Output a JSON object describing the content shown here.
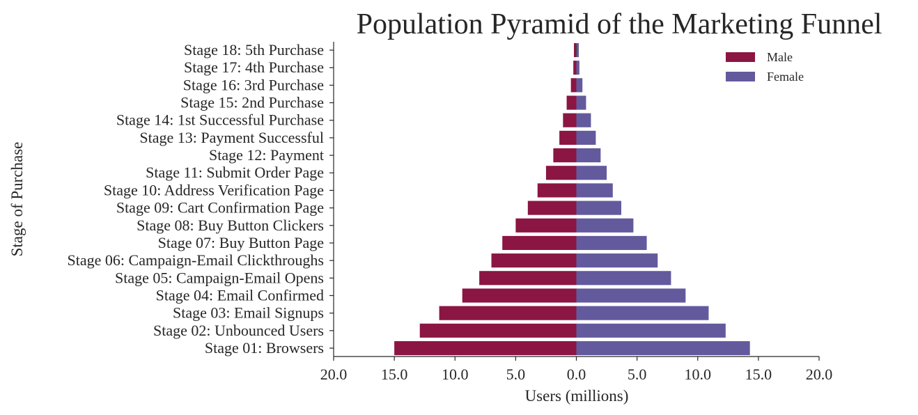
{
  "chart_data": {
    "type": "bar",
    "orientation": "horizontal",
    "title": "Population Pyramid of the Marketing Funnel",
    "xlabel": "Users (millions)",
    "ylabel": "Stage of Purchase",
    "xlim": [
      -20,
      20
    ],
    "xticks": [
      -20,
      -15,
      -10,
      -5,
      0,
      5,
      10,
      15,
      20
    ],
    "xtick_labels": [
      "20.0",
      "15.0",
      "10.0",
      "5.0",
      "0.0",
      "5.0",
      "10.0",
      "15.0",
      "20.0"
    ],
    "categories": [
      "Stage 01: Browsers",
      "Stage 02: Unbounced Users",
      "Stage 03: Email Signups",
      "Stage 04: Email Confirmed",
      "Stage 05: Campaign-Email Opens",
      "Stage 06: Campaign-Email Clickthroughs",
      "Stage 07: Buy Button Page",
      "Stage 08: Buy Button Clickers",
      "Stage 09: Cart Confirmation Page",
      "Stage 10: Address Verification Page",
      "Stage 11: Submit Order Page",
      "Stage 12: Payment",
      "Stage 13: Payment Successful",
      "Stage 14: 1st Successful Purchase",
      "Stage 15: 2nd Purchase",
      "Stage 16: 3rd Purchase",
      "Stage 17: 4th Purchase",
      "Stage 18: 5th Purchase"
    ],
    "series": [
      {
        "name": "Male",
        "color": "#8b1543",
        "values": [
          -15.0,
          -12.9,
          -11.3,
          -9.4,
          -8.0,
          -7.0,
          -6.1,
          -5.0,
          -4.0,
          -3.2,
          -2.5,
          -1.9,
          -1.4,
          -1.1,
          -0.8,
          -0.45,
          -0.25,
          -0.2
        ]
      },
      {
        "name": "Female",
        "color": "#635a9d",
        "values": [
          14.3,
          12.3,
          10.9,
          9.0,
          7.8,
          6.7,
          5.8,
          4.7,
          3.7,
          3.0,
          2.5,
          2.0,
          1.6,
          1.2,
          0.8,
          0.5,
          0.25,
          0.2
        ]
      }
    ],
    "legend": {
      "placement": "top-right",
      "entries": [
        "Male",
        "Female"
      ]
    },
    "grid": false
  }
}
